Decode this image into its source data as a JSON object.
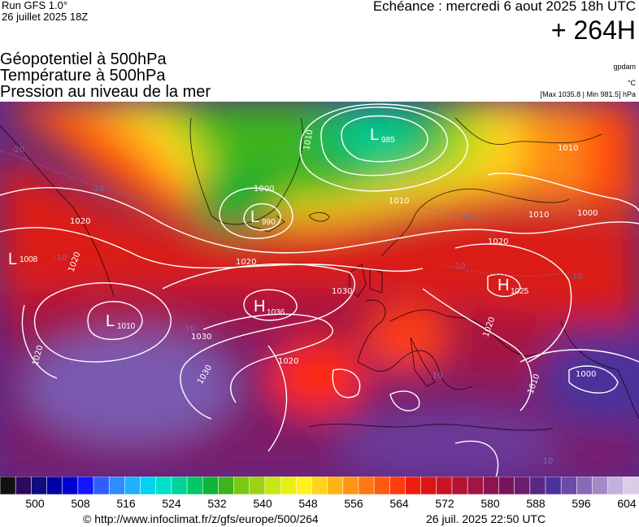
{
  "header": {
    "run": "Run GFS 1.0°",
    "run_date": "26 juillet 2025 18Z",
    "echeance": "Echéance : mercredi 6 aout 2025 18h UTC",
    "hours": "+ 264H"
  },
  "titles": {
    "line1": "Géopotentiel à 500hPa",
    "line2": "Température à 500hPa",
    "line3": "Pression au niveau de la mer"
  },
  "units": {
    "geopotential": "gpdam",
    "temperature": "°C",
    "pressure": "[Max 1035.8 | Min 981.5] hPa"
  },
  "pressure_centers": [
    {
      "letter": "L",
      "value": "985"
    },
    {
      "letter": "L",
      "value": "990"
    },
    {
      "letter": "L",
      "value": "1008"
    },
    {
      "letter": "L",
      "value": "1010"
    },
    {
      "letter": "H",
      "value": "1036"
    },
    {
      "letter": "H",
      "value": "1025"
    }
  ],
  "isobar_labels": [
    "1010",
    "1000",
    "1010",
    "1020",
    "1020",
    "1020",
    "1030",
    "1020",
    "1030",
    "1020",
    "1020",
    "1030",
    "1020",
    "1010",
    "1010",
    "1000",
    "1000",
    "1010"
  ],
  "temp_labels": [
    "-20",
    "-20",
    "-20",
    "-10",
    "-10",
    "-10",
    "-10",
    "-10",
    "-10"
  ],
  "scale": {
    "colors": [
      "#111111",
      "#2c0a5e",
      "#0d0d80",
      "#0000a8",
      "#0000d0",
      "#1414ff",
      "#2f5dff",
      "#2f8cff",
      "#1fb0ff",
      "#00d2f0",
      "#00e0c8",
      "#00d29a",
      "#00c864",
      "#10b43c",
      "#3cb41e",
      "#78c814",
      "#a0d214",
      "#c8e614",
      "#e6f014",
      "#fff01e",
      "#ffd21e",
      "#ffb414",
      "#ff9614",
      "#ff7814",
      "#ff5a0f",
      "#ff3c0f",
      "#f01e0f",
      "#dc1414",
      "#c81428",
      "#b41432",
      "#a01446",
      "#8c1450",
      "#7a145a",
      "#6a1e6e",
      "#5a2882",
      "#4b329a",
      "#6e4aa8",
      "#8a6ab8",
      "#a48ac8",
      "#c4b0dc",
      "#dccce8"
    ],
    "ticks": [
      "500",
      "508",
      "516",
      "524",
      "532",
      "540",
      "548",
      "556",
      "564",
      "572",
      "580",
      "588",
      "596",
      "604"
    ]
  },
  "footer": {
    "credit": "© http://www.infoclimat.fr/z/gfs/europe/500/264",
    "generated": "26 juil. 2025 22:50 UTC"
  }
}
